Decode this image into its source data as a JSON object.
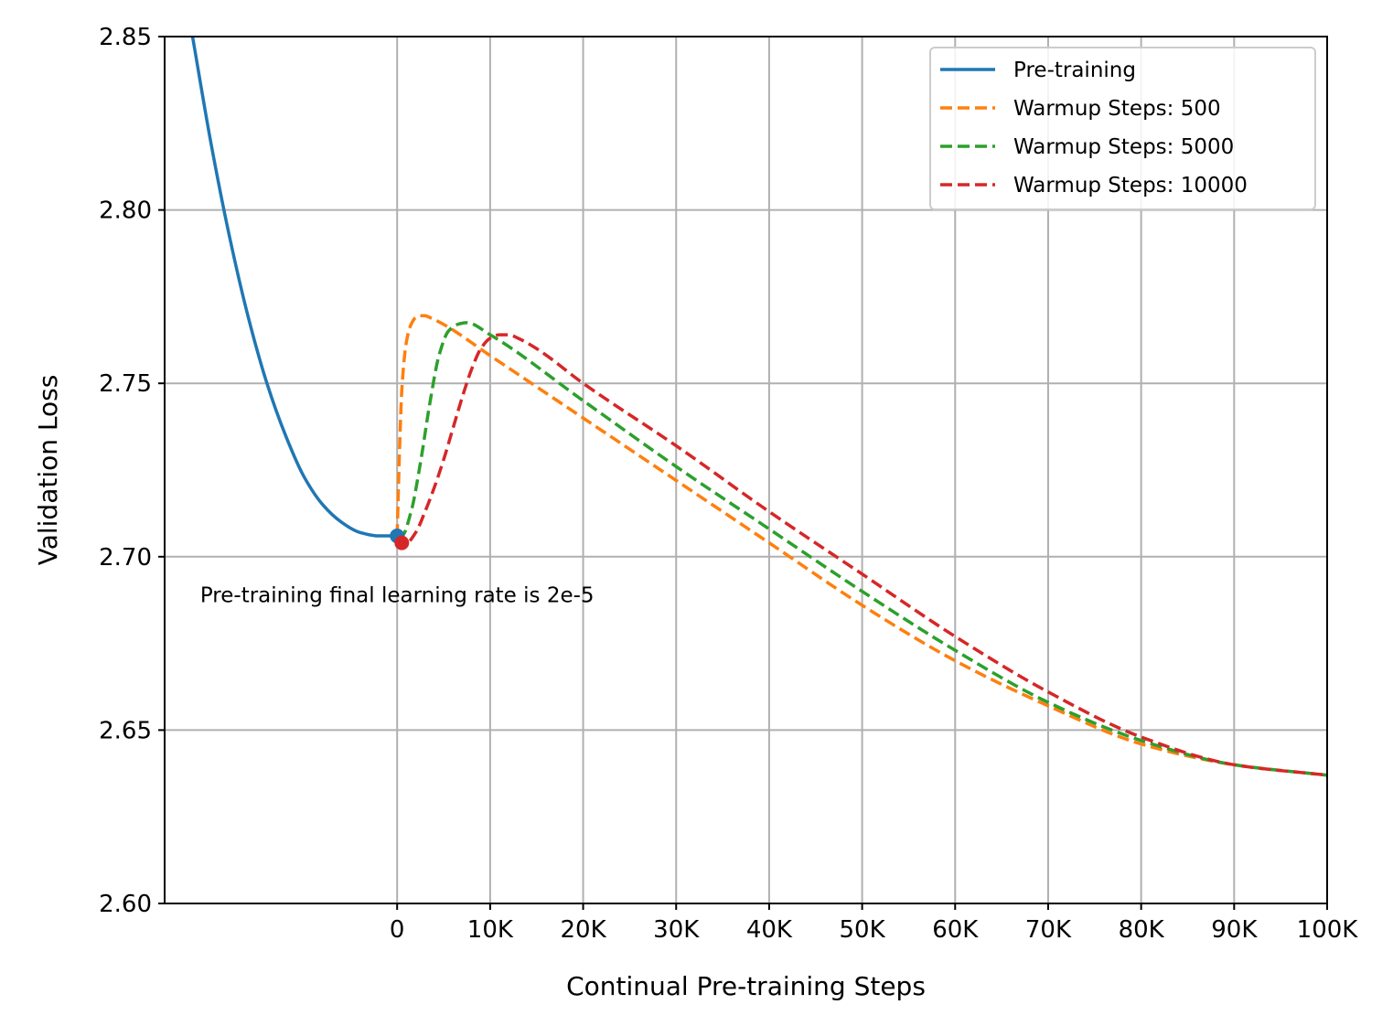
{
  "chart_data": {
    "type": "line",
    "title": "",
    "xlabel": "Continual Pre-training Steps",
    "ylabel": "Validation Loss",
    "xlim": [
      -25000,
      100000
    ],
    "ylim": [
      2.6,
      2.85
    ],
    "grid": true,
    "legend_position": "top-right",
    "x_ticks": [
      {
        "value": 0,
        "label": "0"
      },
      {
        "value": 10000,
        "label": "10K"
      },
      {
        "value": 20000,
        "label": "20K"
      },
      {
        "value": 30000,
        "label": "30K"
      },
      {
        "value": 40000,
        "label": "40K"
      },
      {
        "value": 50000,
        "label": "50K"
      },
      {
        "value": 60000,
        "label": "60K"
      },
      {
        "value": 70000,
        "label": "70K"
      },
      {
        "value": 80000,
        "label": "80K"
      },
      {
        "value": 90000,
        "label": "90K"
      },
      {
        "value": 100000,
        "label": "100K"
      }
    ],
    "y_ticks": [
      {
        "value": 2.6,
        "label": "2.60"
      },
      {
        "value": 2.65,
        "label": "2.65"
      },
      {
        "value": 2.7,
        "label": "2.70"
      },
      {
        "value": 2.75,
        "label": "2.75"
      },
      {
        "value": 2.8,
        "label": "2.80"
      },
      {
        "value": 2.85,
        "label": "2.85"
      }
    ],
    "series": [
      {
        "name": "Pre-training",
        "color": "#1f77b4",
        "style": "solid",
        "x": [
          -22000,
          -20000,
          -18000,
          -16000,
          -14000,
          -12000,
          -10000,
          -8000,
          -6000,
          -4000,
          -2000,
          0
        ],
        "y": [
          2.85,
          2.819,
          2.792,
          2.769,
          2.75,
          2.735,
          2.723,
          2.715,
          2.71,
          2.707,
          2.706,
          2.706
        ]
      },
      {
        "name": "Warmup Steps: 500",
        "color": "#ff7f0e",
        "style": "dashed",
        "x": [
          0,
          250,
          500,
          1000,
          1500,
          2000,
          2500,
          3000,
          3500,
          5000,
          10000,
          20000,
          30000,
          40000,
          50000,
          60000,
          70000,
          80000,
          90000,
          100000
        ],
        "y": [
          2.706,
          2.73,
          2.748,
          2.762,
          2.767,
          2.769,
          2.7695,
          2.7695,
          2.769,
          2.767,
          2.758,
          2.74,
          2.722,
          2.704,
          2.686,
          2.67,
          2.657,
          2.646,
          2.64,
          2.637
        ]
      },
      {
        "name": "Warmup Steps: 5000",
        "color": "#2ca02c",
        "style": "dashed",
        "x": [
          0,
          500,
          1500,
          2500,
          3500,
          4500,
          5500,
          6500,
          7500,
          10000,
          20000,
          30000,
          40000,
          50000,
          60000,
          70000,
          80000,
          90000,
          100000
        ],
        "y": [
          2.706,
          2.706,
          2.713,
          2.727,
          2.744,
          2.758,
          2.765,
          2.767,
          2.7675,
          2.764,
          2.745,
          2.726,
          2.708,
          2.69,
          2.673,
          2.658,
          2.647,
          2.64,
          2.637
        ]
      },
      {
        "name": "Warmup Steps: 10000",
        "color": "#d62728",
        "style": "dashed",
        "x": [
          0,
          500,
          1000,
          2000,
          3000,
          4000,
          5000,
          6000,
          7000,
          8000,
          9000,
          10000,
          11000,
          12000,
          13000,
          15000,
          20000,
          30000,
          40000,
          50000,
          60000,
          70000,
          80000,
          90000,
          100000
        ],
        "y": [
          2.706,
          2.704,
          2.704,
          2.707,
          2.713,
          2.72,
          2.728,
          2.737,
          2.746,
          2.754,
          2.76,
          2.763,
          2.764,
          2.764,
          2.763,
          2.76,
          2.75,
          2.732,
          2.713,
          2.695,
          2.677,
          2.661,
          2.648,
          2.64,
          2.637
        ]
      }
    ],
    "markers": [
      {
        "series": "Pre-training",
        "x": 0,
        "y": 2.706,
        "color": "#1f77b4"
      },
      {
        "series": "Warmup Steps: 10000",
        "x": 500,
        "y": 2.704,
        "color": "#d62728"
      }
    ],
    "annotations": [
      {
        "text": "Pre-training final learning rate is 2e-5",
        "x": 0,
        "y": 2.689
      }
    ]
  }
}
